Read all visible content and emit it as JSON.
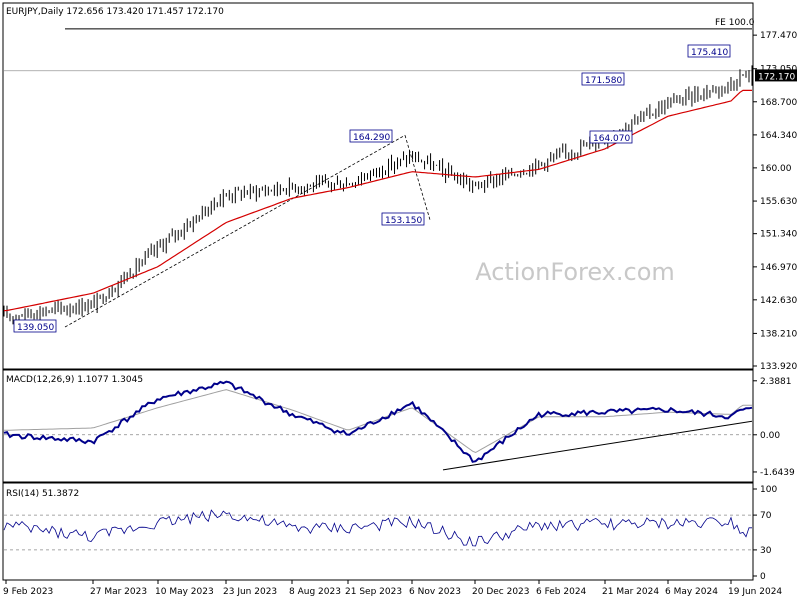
{
  "colors": {
    "candle": "#000000",
    "ma": "#d40000",
    "macd": "#00008b",
    "signal": "#a0a0a0",
    "trendline": "#000000",
    "grid": "#c0c0c0",
    "watermark": "#c8c8c8"
  },
  "header": {
    "price": "EURJPY,Daily  172.656 173.420 171.457 172.170",
    "macd": "MACD(12,26,9) 1.1077 1.3045",
    "rsi": "RSI(14) 51.3872"
  },
  "watermark": "ActionForex.com",
  "chart_data": [
    {
      "type": "candlestick",
      "title": "EURJPY,Daily",
      "ohlc_last": {
        "open": 172.656,
        "high": 173.42,
        "low": 171.457,
        "close": 172.17
      },
      "current_price_label": "172.170",
      "y_ticks": [
        {
          "v": 177.47,
          "label": "177.470"
        },
        {
          "v": 173.05,
          "label": "173.050"
        },
        {
          "v": 168.7,
          "label": "168.700"
        },
        {
          "v": 164.34,
          "label": "164.340"
        },
        {
          "v": 160.0,
          "label": "160.00"
        },
        {
          "v": 155.63,
          "label": "155.630"
        },
        {
          "v": 151.34,
          "label": "151.340"
        },
        {
          "v": 146.97,
          "label": "146.970"
        },
        {
          "v": 142.63,
          "label": "142.630"
        },
        {
          "v": 138.21,
          "label": "138.210"
        },
        {
          "v": 133.92,
          "label": "133.920"
        }
      ],
      "ylim": [
        133.92,
        179.2
      ],
      "x_ticks": [
        "9 Feb 2023",
        "27 Mar 2023",
        "10 May 2023",
        "23 Jun 2023",
        "8 Aug 2023",
        "21 Sep 2023",
        "6 Nov 2023",
        "20 Dec 2023",
        "6 Feb 2024",
        "21 Mar 2024",
        "6 May 2024",
        "19 Jun 2024"
      ],
      "close_anchors": [
        [
          "9 Feb 2023",
          140.5
        ],
        [
          "27 Mar 2023",
          142.0
        ],
        [
          "10 May 2023",
          149.5
        ],
        [
          "23 Jun 2023",
          156.5
        ],
        [
          "8 Aug 2023",
          157.5
        ],
        [
          "21 Sep 2023",
          158.0
        ],
        [
          "6 Nov 2023",
          161.5
        ],
        [
          "20 Dec 2023",
          157.5
        ],
        [
          "6 Feb 2024",
          160.5
        ],
        [
          "21 Mar 2024",
          164.0
        ],
        [
          "6 May 2024",
          168.5
        ],
        [
          "19 Jun 2024",
          171.0
        ],
        [
          "end",
          172.17
        ]
      ],
      "ma_anchors": [
        [
          "9 Feb 2023",
          141.2
        ],
        [
          "27 Mar 2023",
          143.5
        ],
        [
          "10 May 2023",
          147.0
        ],
        [
          "23 Jun 2023",
          152.8
        ],
        [
          "8 Aug 2023",
          156.0
        ],
        [
          "21 Sep 2023",
          157.4
        ],
        [
          "6 Nov 2023",
          159.5
        ],
        [
          "20 Dec 2023",
          158.8
        ],
        [
          "6 Feb 2024",
          159.8
        ],
        [
          "21 Mar 2024",
          162.5
        ],
        [
          "6 May 2024",
          166.8
        ],
        [
          "19 Jun 2024",
          168.8
        ],
        [
          "end",
          170.2
        ]
      ],
      "annotations": [
        {
          "label": "139.050",
          "value": 139.05,
          "date": "27 Mar 2023"
        },
        {
          "label": "164.290",
          "value": 164.29,
          "date": "6 Nov 2023"
        },
        {
          "label": "153.150",
          "value": 153.15,
          "date": "20 Dec 2023"
        },
        {
          "label": "171.580",
          "value": 171.58,
          "date": "21 Mar 2024"
        },
        {
          "label": "164.070",
          "value": 164.07,
          "date": "21 Mar 2024"
        },
        {
          "label": "175.410",
          "value": 175.41,
          "date": "19 Jun 2024"
        }
      ],
      "fe_level": {
        "label": "FE 100.0",
        "value": 178.3
      },
      "horizontal_level": 173.05
    },
    {
      "type": "line",
      "title": "MACD(12,26,9)",
      "values_last": {
        "macd": 1.1077,
        "signal": 1.3045
      },
      "y_ticks": [
        {
          "v": 2.3881,
          "label": "2.3881"
        },
        {
          "v": 0.0,
          "label": "0.00"
        },
        {
          "v": -1.6439,
          "label": "-1.6439"
        }
      ],
      "ylim": [
        -2.0,
        2.6
      ],
      "macd_anchors": [
        [
          "9 Feb 2023",
          0.0
        ],
        [
          "27 Mar 2023",
          -0.3
        ],
        [
          "10 May 2023",
          1.6
        ],
        [
          "23 Jun 2023",
          2.3
        ],
        [
          "8 Aug 2023",
          0.9
        ],
        [
          "21 Sep 2023",
          0.0
        ],
        [
          "6 Nov 2023",
          1.4
        ],
        [
          "20 Dec 2023",
          -1.2
        ],
        [
          "6 Feb 2024",
          0.9
        ],
        [
          "21 Mar 2024",
          1.0
        ],
        [
          "6 May 2024",
          1.1
        ],
        [
          "19 Jun 2024",
          0.8
        ],
        [
          "end",
          1.1077
        ]
      ],
      "signal_anchors": [
        [
          "9 Feb 2023",
          0.2
        ],
        [
          "27 Mar 2023",
          0.3
        ],
        [
          "10 May 2023",
          1.2
        ],
        [
          "23 Jun 2023",
          2.0
        ],
        [
          "8 Aug 2023",
          1.1
        ],
        [
          "21 Sep 2023",
          0.2
        ],
        [
          "6 Nov 2023",
          1.2
        ],
        [
          "20 Dec 2023",
          -0.8
        ],
        [
          "6 Feb 2024",
          0.8
        ],
        [
          "21 Mar 2024",
          0.8
        ],
        [
          "6 May 2024",
          1.0
        ],
        [
          "19 Jun 2024",
          0.9
        ],
        [
          "end",
          1.3045
        ]
      ]
    },
    {
      "type": "line",
      "title": "RSI(14)",
      "value_last": 51.3872,
      "y_ticks": [
        {
          "v": 100,
          "label": "100"
        },
        {
          "v": 70,
          "label": "70"
        },
        {
          "v": 30,
          "label": "30"
        },
        {
          "v": 0,
          "label": "0"
        }
      ],
      "ylim": [
        0,
        100
      ],
      "rsi_anchors": [
        [
          "9 Feb 2023",
          58
        ],
        [
          "27 Mar 2023",
          45
        ],
        [
          "10 May 2023",
          62
        ],
        [
          "23 Jun 2023",
          72
        ],
        [
          "8 Aug 2023",
          55
        ],
        [
          "21 Sep 2023",
          55
        ],
        [
          "6 Nov 2023",
          62
        ],
        [
          "20 Dec 2023",
          38
        ],
        [
          "6 Feb 2024",
          58
        ],
        [
          "21 Mar 2024",
          60
        ],
        [
          "6 May 2024",
          60
        ],
        [
          "19 Jun 2024",
          64
        ],
        [
          "end",
          51.39
        ]
      ]
    }
  ]
}
